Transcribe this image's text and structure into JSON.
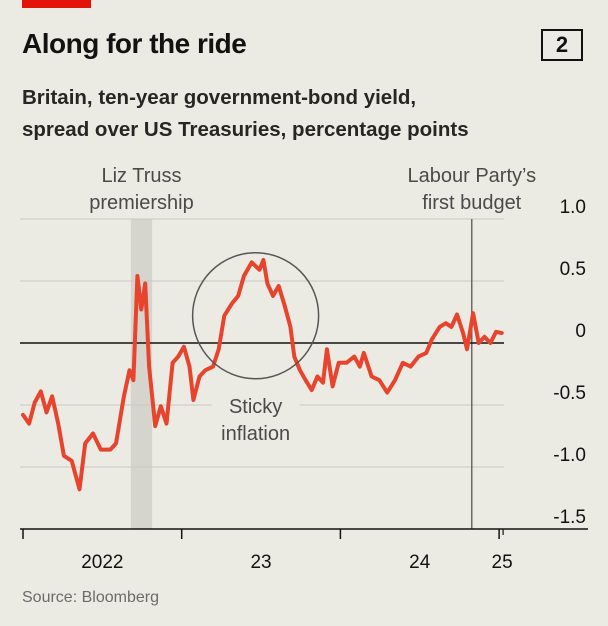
{
  "header": {
    "title": "Along for the ride",
    "chart_number": "2",
    "subtitle_lines": [
      "Britain, ten-year government-bond yield,",
      "spread over US Treasuries, percentage points"
    ]
  },
  "footer": {
    "source": "Source: Bloomberg"
  },
  "colors": {
    "line": "#e8432d",
    "background": "#ecebe3",
    "shade": "#d6d5cd",
    "accent_bar": "#e3120b"
  },
  "chart_data": {
    "type": "line",
    "title": "Along for the ride",
    "ylabel": "percentage points",
    "ylim": [
      -1.5,
      1.0
    ],
    "yticks": [
      1.0,
      0.5,
      0,
      -0.5,
      -1.0,
      -1.5
    ],
    "ytick_labels": [
      "1.0",
      "0.5",
      "0",
      "-0.5",
      "-1.0",
      "-1.5"
    ],
    "xlim": [
      "2022-01-01",
      "2025-03-01"
    ],
    "xticks": [
      "2022-01-01",
      "2023-01-01",
      "2024-01-01",
      "2025-01-01"
    ],
    "xtick_labels": [
      "2022",
      "23",
      "24",
      "25"
    ],
    "grid": true,
    "series": [
      {
        "x": [
          "2022-01-01",
          "2022-01-15",
          "2022-01-28",
          "2022-02-11",
          "2022-02-24",
          "2022-03-09",
          "2022-03-23",
          "2022-04-05",
          "2022-04-23",
          "2022-05-11",
          "2022-05-24",
          "2022-06-11",
          "2022-06-29",
          "2022-07-21",
          "2022-08-03",
          "2022-08-21",
          "2022-09-03",
          "2022-09-12",
          "2022-09-21",
          "2022-09-30",
          "2022-10-09",
          "2022-10-18",
          "2022-11-01",
          "2022-11-14",
          "2022-11-27",
          "2022-12-11",
          "2022-12-24",
          "2023-01-06",
          "2023-01-19",
          "2023-01-28",
          "2023-02-11",
          "2023-02-24",
          "2023-03-14",
          "2023-03-27",
          "2023-04-09",
          "2023-04-27",
          "2023-05-11",
          "2023-05-24",
          "2023-06-11",
          "2023-06-29",
          "2023-07-08",
          "2023-07-17",
          "2023-07-30",
          "2023-08-12",
          "2023-08-26",
          "2023-09-08",
          "2023-09-17",
          "2023-09-30",
          "2023-10-13",
          "2023-10-27",
          "2023-11-09",
          "2023-11-22",
          "2023-12-01",
          "2023-12-14",
          "2023-12-28",
          "2024-01-15",
          "2024-02-02",
          "2024-02-15",
          "2024-02-24",
          "2024-03-13",
          "2024-03-31",
          "2024-04-18",
          "2024-05-06",
          "2024-05-24",
          "2024-06-11",
          "2024-06-29",
          "2024-07-17",
          "2024-07-30",
          "2024-08-17",
          "2024-08-31",
          "2024-09-13",
          "2024-09-26",
          "2024-10-10",
          "2024-10-19",
          "2024-11-02",
          "2024-11-15",
          "2024-11-28",
          "2024-12-12",
          "2024-12-25",
          "2025-01-07"
        ],
        "y": [
          -0.58,
          -0.65,
          -0.48,
          -0.39,
          -0.56,
          -0.43,
          -0.65,
          -0.91,
          -0.95,
          -1.18,
          -0.81,
          -0.73,
          -0.86,
          -0.86,
          -0.81,
          -0.43,
          -0.22,
          -0.3,
          0.54,
          0.27,
          0.48,
          -0.19,
          -0.67,
          -0.51,
          -0.65,
          -0.16,
          -0.11,
          -0.03,
          -0.19,
          -0.46,
          -0.27,
          -0.22,
          -0.19,
          -0.05,
          0.22,
          0.32,
          0.38,
          0.54,
          0.65,
          0.59,
          0.67,
          0.48,
          0.38,
          0.46,
          0.3,
          0.13,
          -0.11,
          -0.22,
          -0.3,
          -0.38,
          -0.27,
          -0.32,
          -0.05,
          -0.35,
          -0.16,
          -0.16,
          -0.11,
          -0.19,
          -0.08,
          -0.27,
          -0.3,
          -0.4,
          -0.3,
          -0.16,
          -0.19,
          -0.11,
          -0.08,
          0.03,
          0.13,
          0.16,
          0.13,
          0.23,
          0.08,
          -0.05,
          0.24,
          0.0,
          0.05,
          0.0,
          0.09,
          0.08
        ]
      }
    ],
    "annotations": {
      "truss": {
        "lines": [
          "Liz Truss",
          "premiership"
        ],
        "start": "2022-09-06",
        "end": "2022-10-25"
      },
      "budget": {
        "lines": [
          "Labour Party’s",
          "first budget"
        ],
        "date": "2024-10-30"
      },
      "sticky": {
        "lines": [
          "Sticky",
          "inflation"
        ],
        "center_date": "2023-06-20",
        "center_value": 0.22
      }
    }
  }
}
